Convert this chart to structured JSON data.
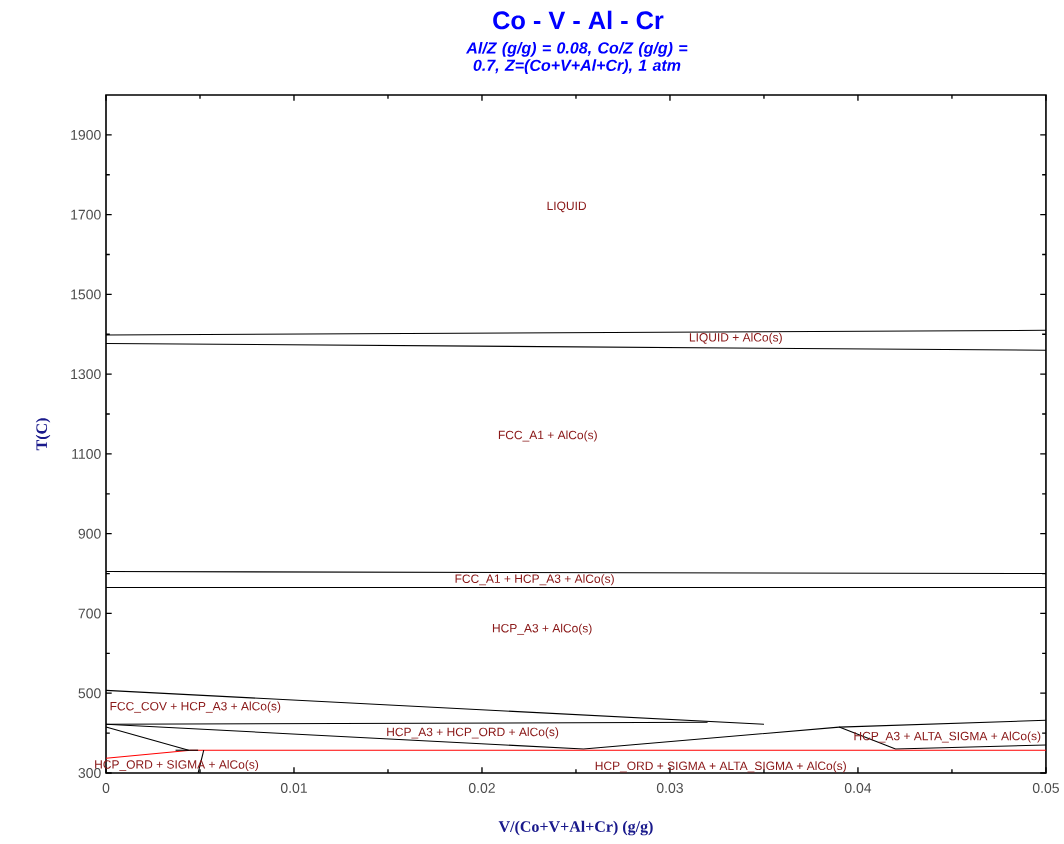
{
  "chart_data": {
    "type": "line",
    "title": "Co - V - Al - Cr",
    "subtitle": "Al/Z (g/g)  = 0.08,  Co/Z (g/g)  = 0.7, Z=(Co+V+Al+Cr), 1 atm",
    "xlabel": "V/(Co+V+Al+Cr) (g/g)",
    "ylabel": "T(C)",
    "xlim": [
      0,
      0.05
    ],
    "ylim": [
      300,
      2000
    ],
    "xticks": [
      0,
      0.01,
      0.02,
      0.03,
      0.04,
      0.05
    ],
    "yticks": [
      300,
      500,
      700,
      900,
      1100,
      1300,
      1500,
      1700,
      1900
    ],
    "grid": false,
    "marker": "none",
    "line_style": "solid",
    "series": [
      {
        "color": "#000000",
        "x": [
          0,
          0.05
        ],
        "values": [
          1398,
          1410
        ]
      },
      {
        "color": "#000000",
        "x": [
          0,
          0.05
        ],
        "values": [
          1377,
          1360
        ]
      },
      {
        "color": "#000000",
        "x": [
          0,
          0.05
        ],
        "values": [
          805,
          800
        ]
      },
      {
        "color": "#000000",
        "x": [
          0,
          0.05
        ],
        "values": [
          765,
          765
        ]
      },
      {
        "color": "#000000",
        "x": [
          0,
          0.035
        ],
        "values": [
          507,
          422
        ]
      },
      {
        "color": "#000000",
        "x": [
          0,
          0.032
        ],
        "values": [
          422,
          427
        ]
      },
      {
        "color": "#000000",
        "x": [
          0,
          0.0254,
          0.039,
          0.05
        ],
        "values": [
          422,
          360,
          415,
          432
        ]
      },
      {
        "color": "#000000",
        "x": [
          0.039,
          0.042,
          0.05
        ],
        "values": [
          415,
          360,
          370
        ]
      },
      {
        "color": "#ff0000",
        "x": [
          0,
          0.0045,
          0.05
        ],
        "values": [
          337,
          357,
          357
        ]
      },
      {
        "color": "#000000",
        "x": [
          0,
          0.0044
        ],
        "values": [
          415,
          357
        ]
      },
      {
        "color": "#000000",
        "x": [
          0.0037,
          0.0049
        ],
        "values": [
          357,
          357
        ]
      },
      {
        "color": "#000000",
        "x": [
          0.0052,
          0.0049
        ],
        "values": [
          357,
          300
        ]
      }
    ],
    "annotations": [
      "LIQUID",
      "LIQUID + AlCo(s)",
      "FCC_A1 + AlCo(s)",
      "FCC_A1 + HCP_A3 + AlCo(s)",
      "HCP_A3 + AlCo(s)",
      "FCC_COV + HCP_A3 + AlCo(s)",
      "HCP_A3 + HCP_ORD + AlCo(s)",
      "HCP_A3 + ALTA_SIGMA + AlCo(s)",
      "HCP_ORD + SIGMA + AlCo(s)",
      "HCP_ORD + SIGMA + ALTA_SIGMA + AlCo(s)"
    ]
  }
}
